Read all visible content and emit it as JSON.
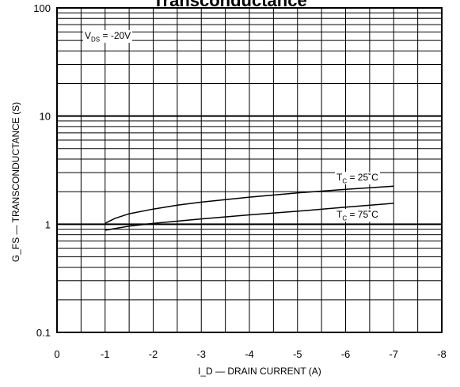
{
  "chart_data": {
    "type": "line",
    "title": "Transconductance",
    "xlabel": "I_D — DRAIN CURRENT  (A)",
    "ylabel": "G_FS — TRANSCONDUCTANCE  (S)",
    "x_ticks": [
      "0",
      "-1",
      "-2",
      "-3",
      "-4",
      "-5",
      "-6",
      "-7",
      "-8"
    ],
    "y_ticks": [
      "0.1",
      "1",
      "10",
      "100"
    ],
    "xlim": [
      0,
      -8
    ],
    "ylim": [
      0.1,
      100
    ],
    "y_scale": "log",
    "grid": true,
    "annotation": {
      "symbol": "V",
      "sub": "DS",
      "text": "= -20V"
    },
    "series": [
      {
        "name": "T_C = 25˚C",
        "label": {
          "symbol": "T",
          "sub": "C",
          "text": "= 25˚C"
        },
        "x": [
          -1.0,
          -1.2,
          -1.5,
          -2.0,
          -2.5,
          -3.0,
          -4.0,
          -5.0,
          -6.0,
          -7.0
        ],
        "y": [
          1.02,
          1.13,
          1.25,
          1.38,
          1.5,
          1.6,
          1.78,
          1.95,
          2.1,
          2.25
        ]
      },
      {
        "name": "T_C = 75˚C",
        "label": {
          "symbol": "T",
          "sub": "C",
          "text": "= 75˚C"
        },
        "x": [
          -1.0,
          -1.5,
          -2.0,
          -3.0,
          -4.0,
          -5.0,
          -6.0,
          -7.0
        ],
        "y": [
          0.88,
          0.96,
          1.02,
          1.12,
          1.22,
          1.32,
          1.44,
          1.56
        ]
      }
    ]
  }
}
